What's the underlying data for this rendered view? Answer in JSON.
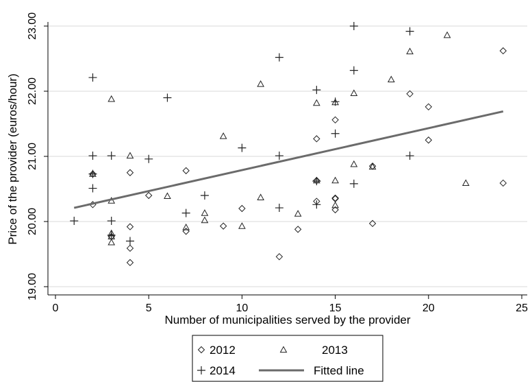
{
  "chart_data": {
    "type": "scatter",
    "xlabel": "Number of municipalities served by the provider",
    "ylabel": "Price of the provider (euros/hour)",
    "xlim": [
      0,
      25
    ],
    "ylim": [
      18.95,
      23.05
    ],
    "x_ticks": [
      0,
      5,
      10,
      15,
      20,
      25
    ],
    "y_ticks": [
      19,
      20,
      21,
      22,
      23
    ],
    "y_tick_labels": [
      "19.00",
      "20.00",
      "21.00",
      "22.00",
      "23.00"
    ],
    "grid": "horizontal",
    "legend_position": "bottom",
    "legend": [
      {
        "marker": "diamond",
        "label": "2012"
      },
      {
        "marker": "triangle",
        "label": "2013"
      },
      {
        "marker": "plus",
        "label": "2014"
      },
      {
        "marker": "line",
        "label": "Fitted line"
      }
    ],
    "series": [
      {
        "name": "2012",
        "marker": "diamond",
        "points": [
          [
            2,
            20.26
          ],
          [
            2,
            20.73
          ],
          [
            3,
            19.77
          ],
          [
            4,
            20.75
          ],
          [
            4,
            19.92
          ],
          [
            4,
            19.59
          ],
          [
            4,
            19.37
          ],
          [
            5,
            20.4
          ],
          [
            7,
            20.78
          ],
          [
            7,
            19.85
          ],
          [
            9,
            19.93
          ],
          [
            10,
            20.2
          ],
          [
            12,
            19.46
          ],
          [
            13,
            19.88
          ],
          [
            14,
            21.27
          ],
          [
            14,
            20.31
          ],
          [
            14,
            20.63
          ],
          [
            15,
            21.56
          ],
          [
            15,
            20.36
          ],
          [
            15,
            20.35
          ],
          [
            15,
            20.18
          ],
          [
            17,
            19.97
          ],
          [
            17,
            20.85
          ],
          [
            19,
            21.96
          ],
          [
            20,
            21.76
          ],
          [
            20,
            21.25
          ],
          [
            24,
            22.62
          ],
          [
            24,
            20.59
          ]
        ]
      },
      {
        "name": "2013",
        "marker": "triangle",
        "points": [
          [
            2,
            20.73
          ],
          [
            3,
            21.88
          ],
          [
            3,
            20.32
          ],
          [
            3,
            19.82
          ],
          [
            3,
            19.77
          ],
          [
            3,
            19.68
          ],
          [
            4,
            21.01
          ],
          [
            6,
            20.39
          ],
          [
            7,
            19.91
          ],
          [
            8,
            20.13
          ],
          [
            8,
            20.02
          ],
          [
            9,
            21.31
          ],
          [
            10,
            19.93
          ],
          [
            11,
            22.11
          ],
          [
            11,
            20.37
          ],
          [
            13,
            20.12
          ],
          [
            14,
            21.82
          ],
          [
            14,
            20.63
          ],
          [
            15,
            21.83
          ],
          [
            15,
            20.63
          ],
          [
            15,
            20.25
          ],
          [
            16,
            21.97
          ],
          [
            16,
            20.88
          ],
          [
            17,
            20.84
          ],
          [
            18,
            22.18
          ],
          [
            19,
            22.61
          ],
          [
            21,
            22.86
          ],
          [
            22,
            20.59
          ]
        ]
      },
      {
        "name": "2014",
        "marker": "plus",
        "points": [
          [
            1,
            20.01
          ],
          [
            2,
            22.21
          ],
          [
            2,
            21.01
          ],
          [
            2,
            20.73
          ],
          [
            2,
            20.51
          ],
          [
            3,
            21.01
          ],
          [
            3,
            20.01
          ],
          [
            3,
            19.79
          ],
          [
            4,
            19.7
          ],
          [
            5,
            20.96
          ],
          [
            6,
            21.9
          ],
          [
            7,
            20.13
          ],
          [
            8,
            20.4
          ],
          [
            10,
            21.13
          ],
          [
            12,
            22.52
          ],
          [
            12,
            21.01
          ],
          [
            12,
            20.21
          ],
          [
            14,
            22.02
          ],
          [
            14,
            20.62
          ],
          [
            14,
            20.26
          ],
          [
            15,
            21.84
          ],
          [
            15,
            21.35
          ],
          [
            16,
            23.0
          ],
          [
            16,
            22.32
          ],
          [
            16,
            20.58
          ],
          [
            19,
            22.92
          ],
          [
            19,
            21.01
          ]
        ]
      }
    ],
    "fitted_line": {
      "label": "Fitted line",
      "x": [
        1,
        24
      ],
      "y": [
        20.21,
        21.69
      ]
    }
  }
}
